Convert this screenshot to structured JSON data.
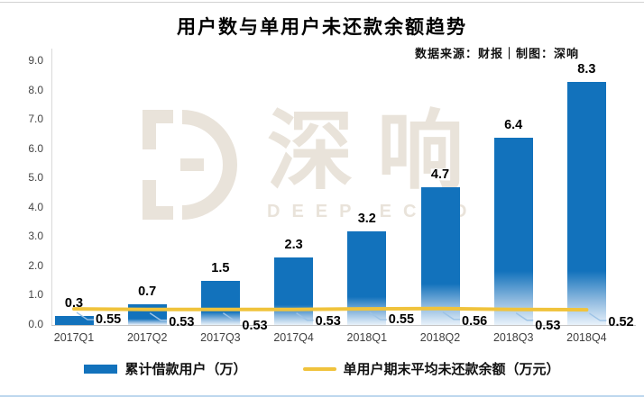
{
  "header": {
    "title": "用户数与单用户未还款余额趋势",
    "subtitle": "数据来源：财报｜制图：深响"
  },
  "watermark": {
    "cn": "深响",
    "en": "DEEP ECHO"
  },
  "colors": {
    "bar": "#1272BC",
    "bar_fade_mid": "#8FBADF",
    "bar_fade_end": "#E9F2FA",
    "line": "#F0C33C",
    "leader": "#9DC3E6",
    "axis": "#C3C3C3",
    "tick_text": "#3F3F3F",
    "watermark": "#E9E3DA",
    "bottom_border": "#BDD7EE"
  },
  "chart_data": {
    "type": "bar",
    "title": "用户数与单用户未还款余额趋势",
    "subtitle": "数据来源：财报｜制图：深响",
    "categories": [
      "2017Q1",
      "2017Q2",
      "2017Q3",
      "2017Q4",
      "2018Q1",
      "2018Q2",
      "2018Q3",
      "2018Q4"
    ],
    "series": [
      {
        "name": "累计借款用户（万）",
        "type": "bar",
        "color": "#1272BC",
        "values": [
          0.3,
          0.7,
          1.5,
          2.3,
          3.2,
          4.7,
          6.4,
          8.3
        ],
        "labels": [
          "0.3",
          "0.7",
          "1.5",
          "2.3",
          "3.2",
          "4.7",
          "6.4",
          "8.3"
        ]
      },
      {
        "name": "单用户期末平均未还款余额（万元）",
        "type": "line",
        "color": "#F0C33C",
        "values": [
          0.55,
          0.53,
          0.53,
          0.53,
          0.55,
          0.56,
          0.53,
          0.52
        ],
        "labels": [
          "0.55",
          "0.53",
          "0.53",
          "0.53",
          "0.55",
          "0.56",
          "0.53",
          "0.52"
        ]
      }
    ],
    "xlabel": "",
    "ylabel": "",
    "ylim": [
      0,
      9.0
    ],
    "yticks": [
      "0.0",
      "1.0",
      "2.0",
      "3.0",
      "4.0",
      "5.0",
      "6.0",
      "7.0",
      "8.0",
      "9.0"
    ],
    "grid": false,
    "legend_position": "bottom"
  },
  "legend": {
    "items": [
      {
        "label": "累计借款用户（万）",
        "swatch": "bar"
      },
      {
        "label": "单用户期末平均未还款余额（万元）",
        "swatch": "line"
      }
    ]
  }
}
